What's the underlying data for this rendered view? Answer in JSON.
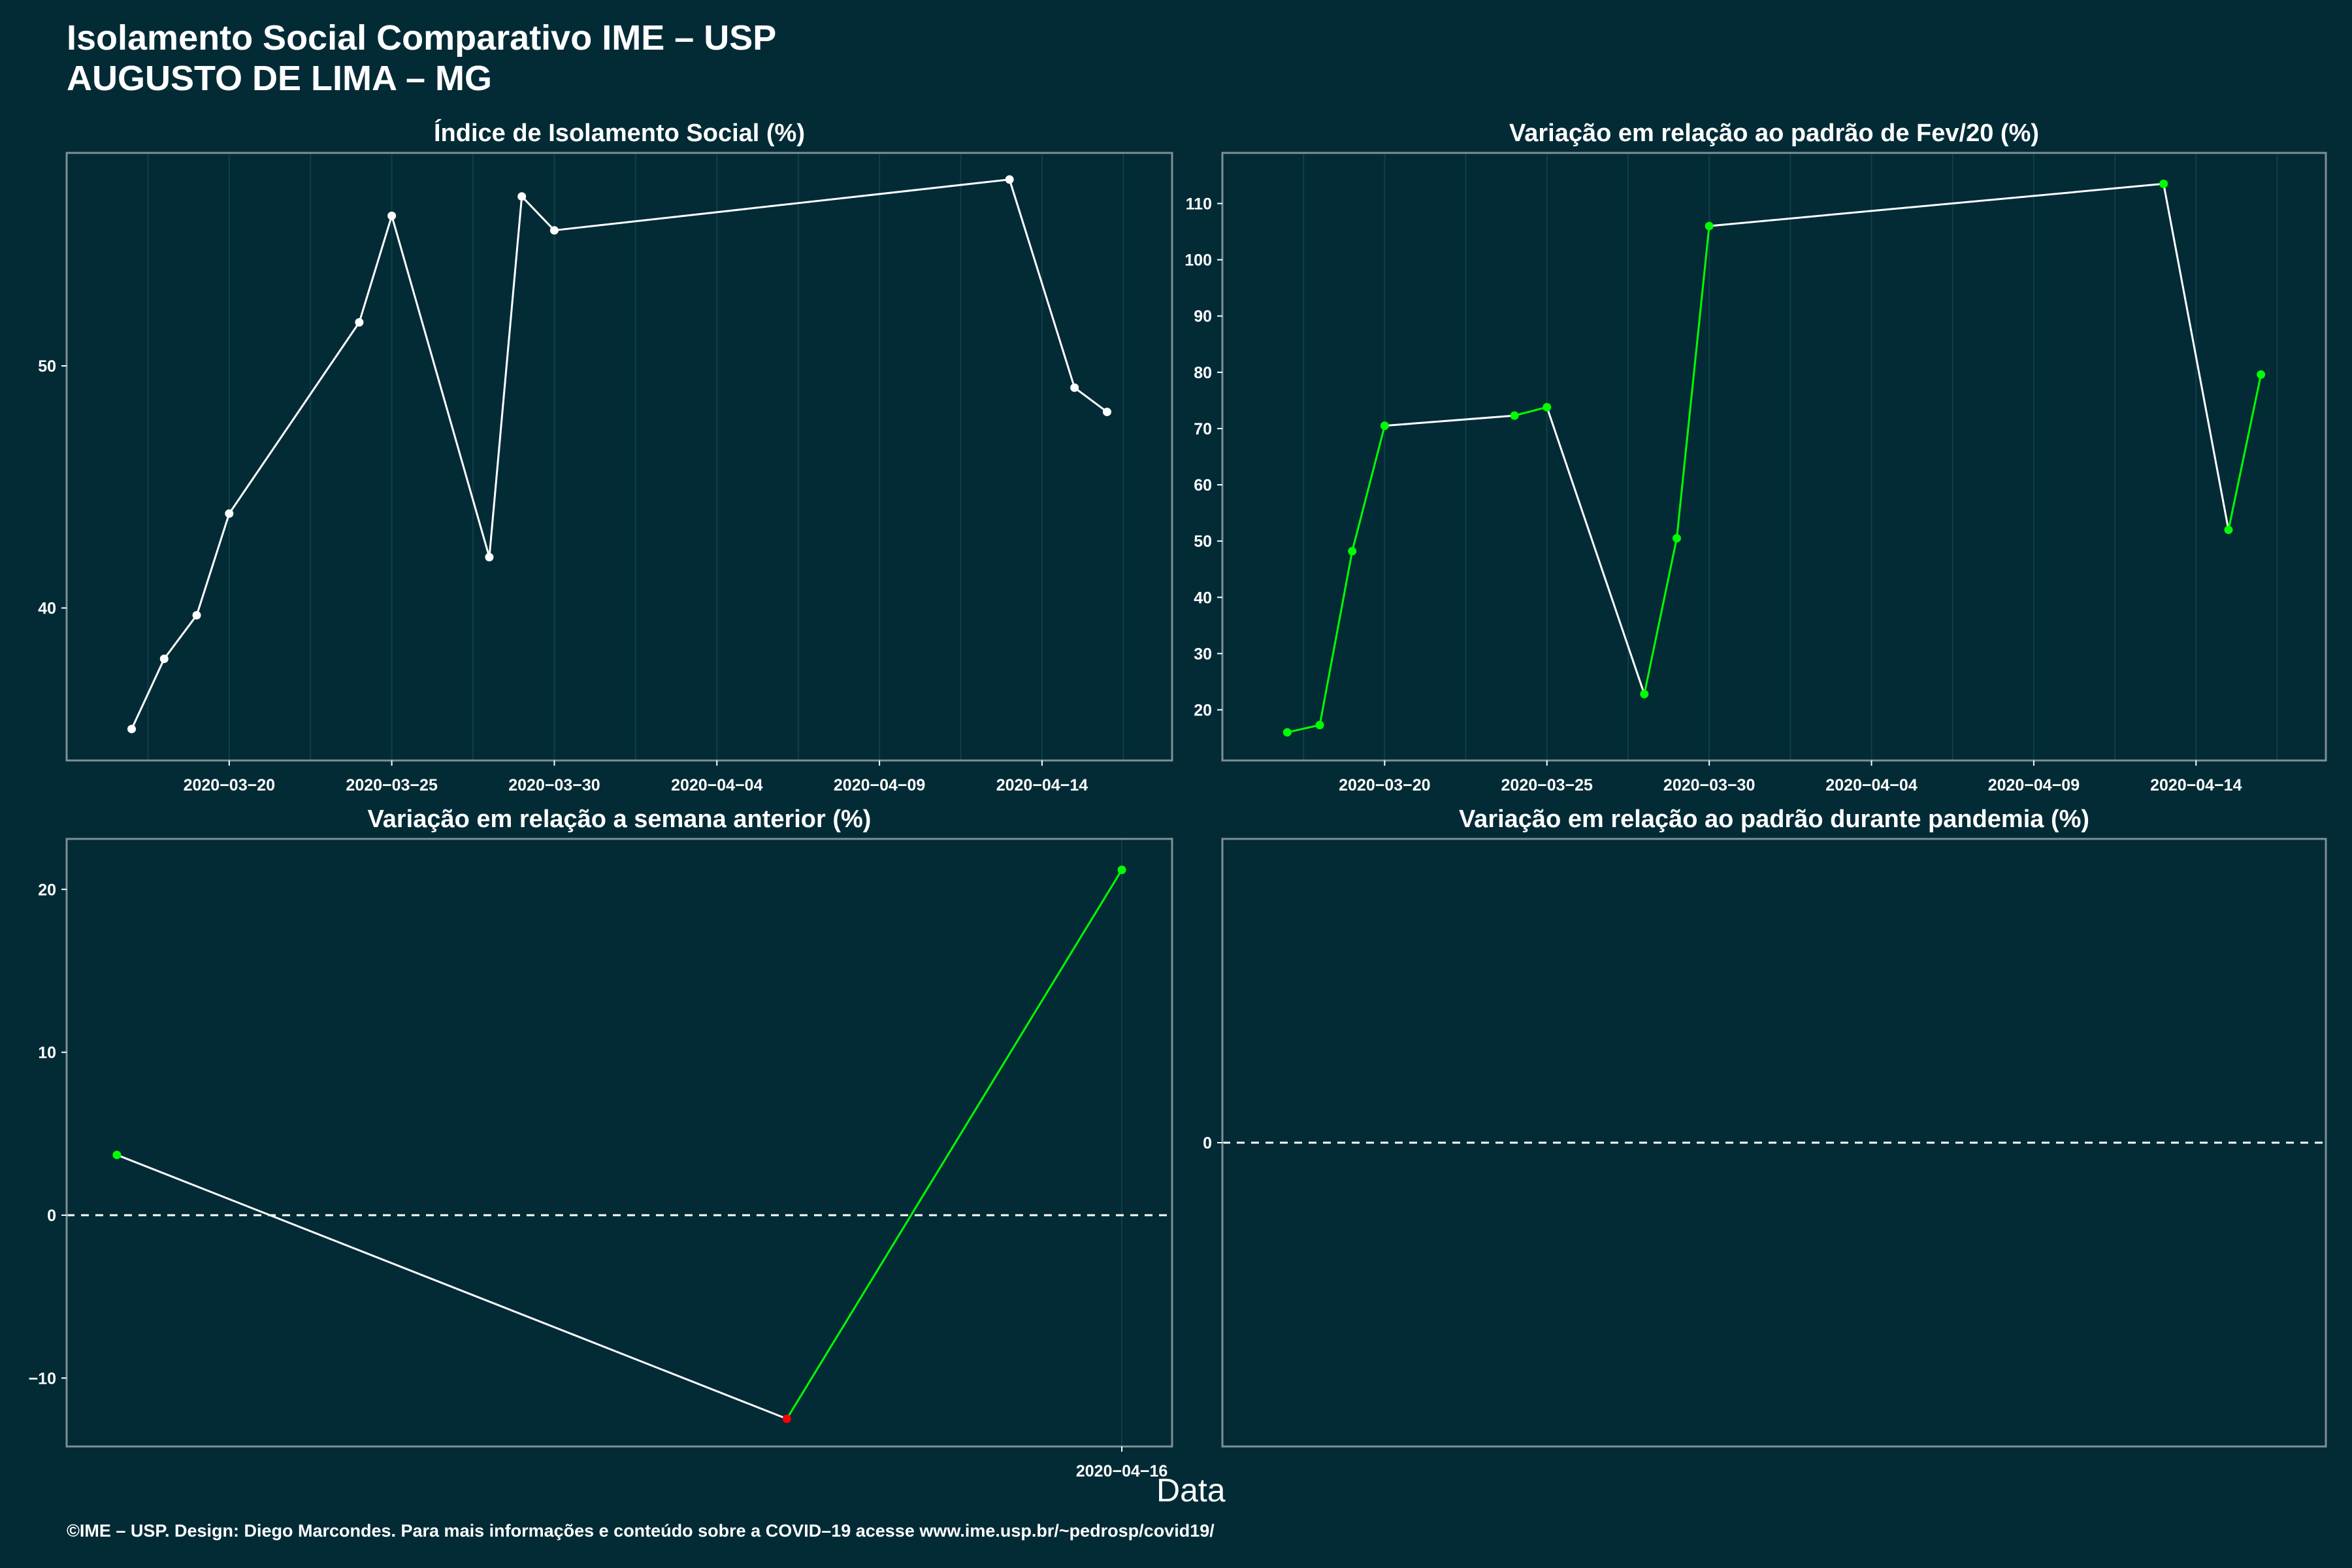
{
  "title": {
    "line1": "Isolamento Social Comparativo IME – USP",
    "line2": "AUGUSTO DE LIMA – MG"
  },
  "x_axis_title": "Data",
  "footer": "©IME – USP. Design: Diego Marcondes. Para mais informações e conteúdo sobre a COVID–19 acesse www.ime.usp.br/~pedrosp/covid19/",
  "colors": {
    "background": "#022b36",
    "line": "#ffffff",
    "increase": "#00ff00",
    "decrease": "#ff0000",
    "grid": "#103f49",
    "border": "#7f8f94"
  },
  "chart_data": [
    {
      "type": "line",
      "title": "Índice de Isolamento Social (%)",
      "x": [
        "2020-03-17",
        "2020-03-18",
        "2020-03-19",
        "2020-03-20",
        "2020-03-24",
        "2020-03-25",
        "2020-03-28",
        "2020-03-29",
        "2020-03-30",
        "2020-04-13",
        "2020-04-15",
        "2020-04-16"
      ],
      "values": [
        35.0,
        37.9,
        39.7,
        43.9,
        51.8,
        56.2,
        42.1,
        57.0,
        55.6,
        57.7,
        49.1,
        48.1
      ],
      "point_colors": [
        "#ffffff",
        "#ffffff",
        "#ffffff",
        "#ffffff",
        "#ffffff",
        "#ffffff",
        "#ffffff",
        "#ffffff",
        "#ffffff",
        "#ffffff",
        "#ffffff",
        "#ffffff"
      ],
      "segment_colors": [
        "#ffffff",
        "#ffffff",
        "#ffffff",
        "#ffffff",
        "#ffffff",
        "#ffffff",
        "#ffffff",
        "#ffffff",
        "#ffffff",
        "#ffffff",
        "#ffffff"
      ],
      "xlim": [
        "2020-03-15",
        "2020-04-18"
      ],
      "ylim": [
        33.7,
        58.8
      ],
      "y_ticks": [
        40,
        50
      ],
      "x_ticks": [
        "2020-03-20",
        "2020-03-25",
        "2020-03-30",
        "2020-04-04",
        "2020-04-09",
        "2020-04-14"
      ],
      "grid": true
    },
    {
      "type": "line",
      "title": "Variação em relação ao padrão de Fev/20 (%)",
      "x": [
        "2020-03-17",
        "2020-03-18",
        "2020-03-19",
        "2020-03-20",
        "2020-03-24",
        "2020-03-25",
        "2020-03-28",
        "2020-03-29",
        "2020-03-30",
        "2020-04-13",
        "2020-04-15",
        "2020-04-16"
      ],
      "values": [
        16,
        17.3,
        48.2,
        70.5,
        72.3,
        73.8,
        22.8,
        50.5,
        106,
        113.5,
        52,
        79.6
      ],
      "point_colors": [
        "#00ff00",
        "#00ff00",
        "#00ff00",
        "#00ff00",
        "#00ff00",
        "#00ff00",
        "#00ff00",
        "#00ff00",
        "#00ff00",
        "#00ff00",
        "#00ff00",
        "#00ff00"
      ],
      "segment_colors": [
        "#00ff00",
        "#00ff00",
        "#00ff00",
        "#ffffff",
        "#00ff00",
        "#ffffff",
        "#00ff00",
        "#00ff00",
        "#ffffff",
        "#ffffff",
        "#00ff00"
      ],
      "xlim": [
        "2020-03-15",
        "2020-04-18"
      ],
      "ylim": [
        11,
        119
      ],
      "y_ticks": [
        20,
        30,
        40,
        50,
        60,
        70,
        80,
        90,
        100,
        110
      ],
      "x_ticks": [
        "2020-03-20",
        "2020-03-25",
        "2020-03-30",
        "2020-04-04",
        "2020-04-09",
        "2020-04-14"
      ],
      "grid": true
    },
    {
      "type": "line",
      "title": "Variação em relação a semana anterior (%)",
      "x": [
        "2020-04-13",
        "2020-04-15",
        "2020-04-16"
      ],
      "values": [
        3.7,
        -12.5,
        21.2
      ],
      "point_colors": [
        "#00ff00",
        "#ff0000",
        "#00ff00"
      ],
      "segment_colors": [
        "#ffffff",
        "#00ff00"
      ],
      "xlim": [
        "2020-04-12.85",
        "2020-04-16.15"
      ],
      "ylim": [
        -14.2,
        23.1
      ],
      "y_ticks": [
        -10,
        0,
        10,
        20
      ],
      "x_ticks": [
        "2020-04-16"
      ],
      "reference_line": 0,
      "grid": true
    },
    {
      "type": "line",
      "title": "Variação em relação ao padrão durante pandemia (%)",
      "x": [],
      "values": [],
      "point_colors": [],
      "segment_colors": [],
      "ylim": [
        -1,
        1
      ],
      "y_ticks": [
        0
      ],
      "x_ticks": [],
      "reference_line": 0,
      "grid": false
    }
  ]
}
